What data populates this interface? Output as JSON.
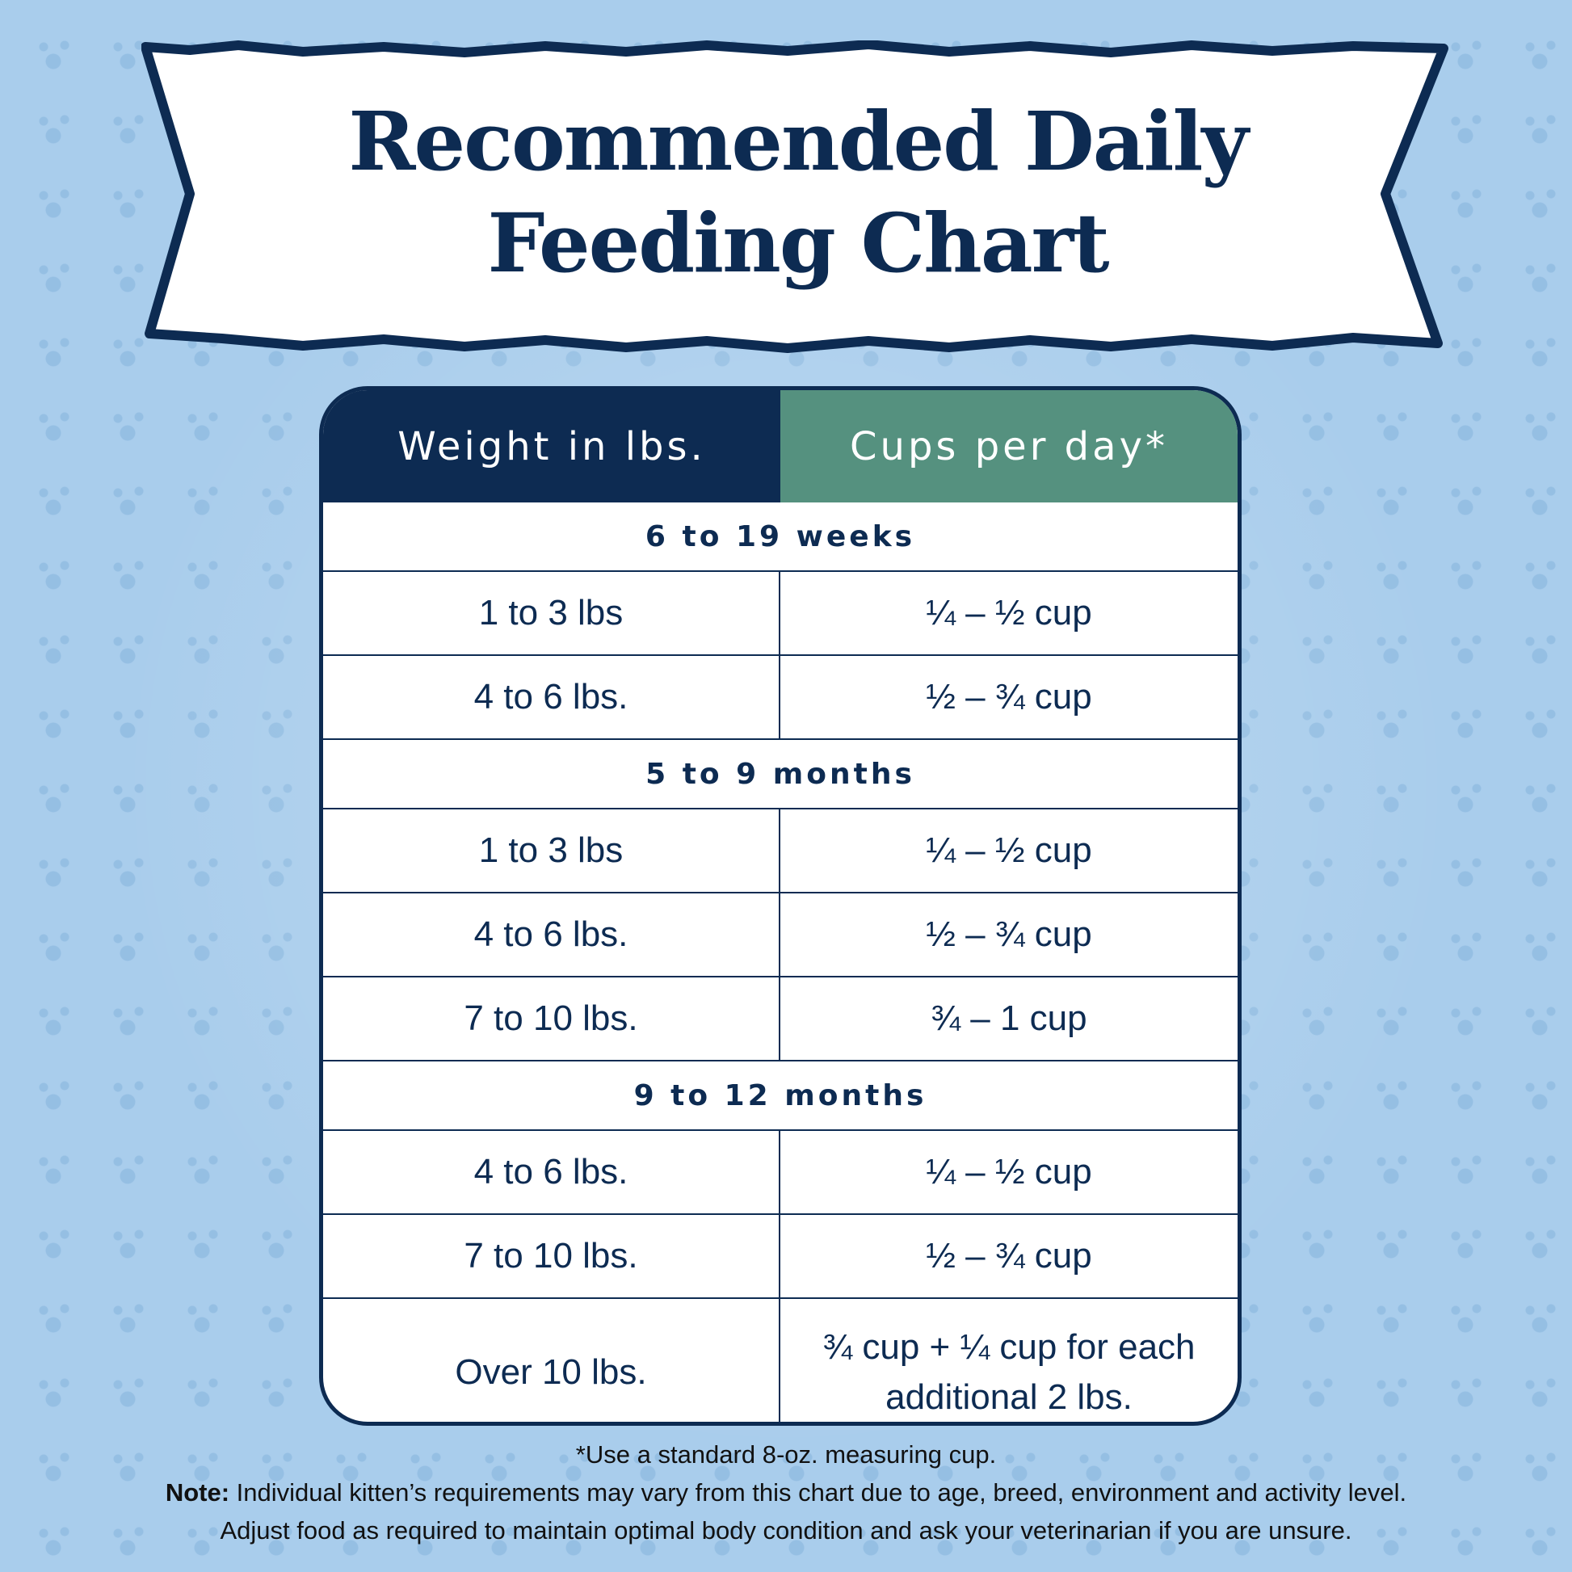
{
  "title": {
    "line1": "Recommended Daily",
    "line2": "Feeding Chart"
  },
  "colors": {
    "navy": "#0d2b52",
    "green": "#55917f",
    "background": "#a9cdec"
  },
  "table": {
    "headers": [
      "Weight in lbs.",
      "Cups per day*"
    ],
    "sections": [
      {
        "label": "6 to 19 weeks",
        "rows": [
          [
            "1 to 3 lbs",
            "¼ – ½ cup"
          ],
          [
            "4 to 6 lbs.",
            "½ – ¾ cup"
          ]
        ]
      },
      {
        "label": "5 to 9 months",
        "rows": [
          [
            "1 to 3 lbs",
            "¼ – ½ cup"
          ],
          [
            "4 to 6 lbs.",
            "½ – ¾ cup"
          ],
          [
            "7 to 10 lbs.",
            "¾ – 1 cup"
          ]
        ]
      },
      {
        "label": "9 to 12 months",
        "rows": [
          [
            "4 to 6 lbs.",
            "¼ – ½ cup"
          ],
          [
            "7 to 10 lbs.",
            "½ – ¾ cup"
          ],
          [
            "Over 10 lbs.",
            "¾ cup + ¼ cup for each additional 2 lbs."
          ]
        ]
      }
    ]
  },
  "footnote": {
    "asterisk": "*Use a standard 8-oz. measuring cup.",
    "note_label": "Note:",
    "note_text": " Individual kitten’s requirements may vary from this chart due to age, breed, environment and activity level.",
    "adjust": "Adjust food as required to maintain optimal body condition and ask  your veterinarian if you are unsure."
  }
}
